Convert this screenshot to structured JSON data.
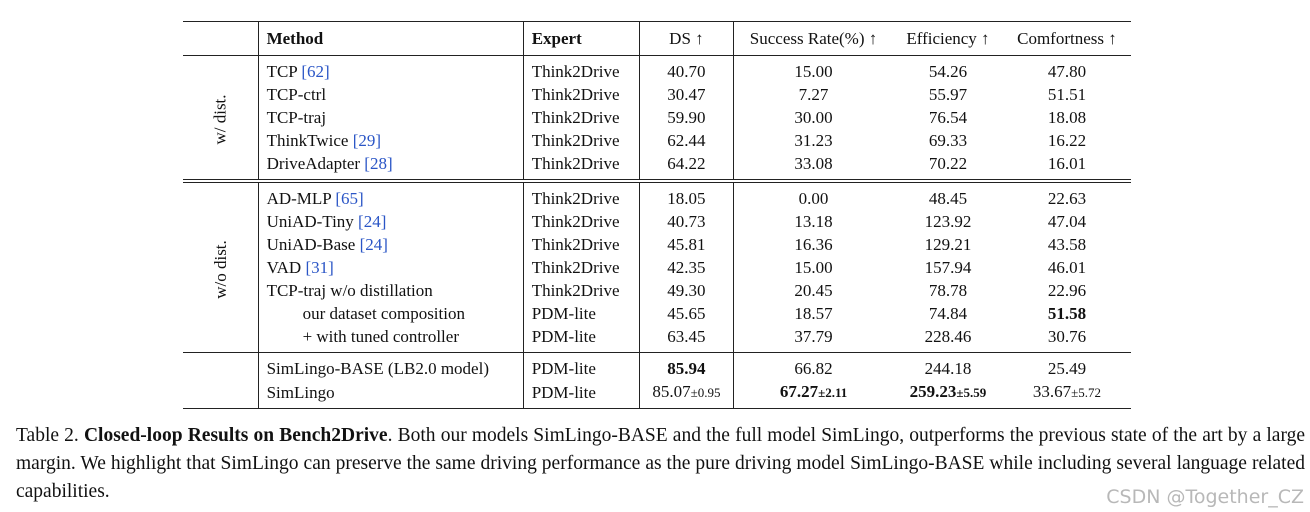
{
  "table": {
    "headers": [
      "Method",
      "Expert",
      "DS ↑",
      "Success Rate(%) ↑",
      "Efficiency ↑",
      "Comfortness ↑"
    ],
    "groups": [
      {
        "label": "w/ dist.",
        "rows": [
          {
            "method": "TCP",
            "ref": "[62]",
            "expert": "Think2Drive",
            "values": [
              "40.70",
              "15.00",
              "54.26",
              "47.80"
            ]
          },
          {
            "method": "TCP-ctrl",
            "expert": "Think2Drive",
            "values": [
              "30.47",
              "7.27",
              "55.97",
              "51.51"
            ]
          },
          {
            "method": "TCP-traj",
            "expert": "Think2Drive",
            "values": [
              "59.90",
              "30.00",
              "76.54",
              "18.08"
            ]
          },
          {
            "method": "ThinkTwice",
            "ref": "[29]",
            "expert": "Think2Drive",
            "values": [
              "62.44",
              "31.23",
              "69.33",
              "16.22"
            ]
          },
          {
            "method": "DriveAdapter",
            "ref": "[28]",
            "expert": "Think2Drive",
            "values": [
              "64.22",
              "33.08",
              "70.22",
              "16.01"
            ]
          }
        ]
      },
      {
        "label": "w/o dist.",
        "rows": [
          {
            "method": "AD-MLP",
            "ref": "[65]",
            "expert": "Think2Drive",
            "values": [
              "18.05",
              "0.00",
              "48.45",
              "22.63"
            ]
          },
          {
            "method": "UniAD-Tiny",
            "ref": "[24]",
            "expert": "Think2Drive",
            "values": [
              "40.73",
              "13.18",
              "123.92",
              "47.04"
            ]
          },
          {
            "method": "UniAD-Base",
            "ref": "[24]",
            "expert": "Think2Drive",
            "values": [
              "45.81",
              "16.36",
              "129.21",
              "43.58"
            ]
          },
          {
            "method": "VAD",
            "ref": "[31]",
            "expert": "Think2Drive",
            "values": [
              "42.35",
              "15.00",
              "157.94",
              "46.01"
            ]
          },
          {
            "method": "TCP-traj w/o distillation",
            "expert": "Think2Drive",
            "values": [
              "49.30",
              "20.45",
              "78.78",
              "22.96"
            ]
          },
          {
            "method": "our dataset composition",
            "indent": true,
            "expert": "PDM-lite",
            "values": [
              "45.65",
              "18.57",
              "74.84",
              {
                "value": "51.58",
                "bold": true
              }
            ]
          },
          {
            "method": "+ with tuned controller",
            "indent": true,
            "expert": "PDM-lite",
            "values": [
              "63.45",
              "37.79",
              "228.46",
              "30.76"
            ]
          }
        ]
      },
      {
        "rows": [
          {
            "method": "SimLingo-BASE (LB2.0 model)",
            "expert": "PDM-lite",
            "values": [
              {
                "value": "85.94",
                "bold": true
              },
              "66.82",
              "244.18",
              "25.49"
            ]
          },
          {
            "method": "SimLingo",
            "expert": "PDM-lite",
            "values": [
              {
                "value": "85.07",
                "std": "±0.95"
              },
              {
                "value": "67.27",
                "std": "±2.11",
                "bold": true
              },
              {
                "value": "259.23",
                "std": "±5.59",
                "bold": true
              },
              {
                "value": "33.67",
                "std": "±5.72"
              }
            ]
          }
        ]
      }
    ]
  },
  "caption": {
    "label": "Table 2.",
    "title": "Closed-loop Results on Bench2Drive",
    "text": ". Both our models SimLingo-BASE and the full model SimLingo, outperforms the previous state of the art by a large margin. We highlight that SimLingo can preserve the same driving performance as the pure driving model SimLingo-BASE while including several language related capabilities."
  },
  "watermark": "CSDN @Together_CZ"
}
